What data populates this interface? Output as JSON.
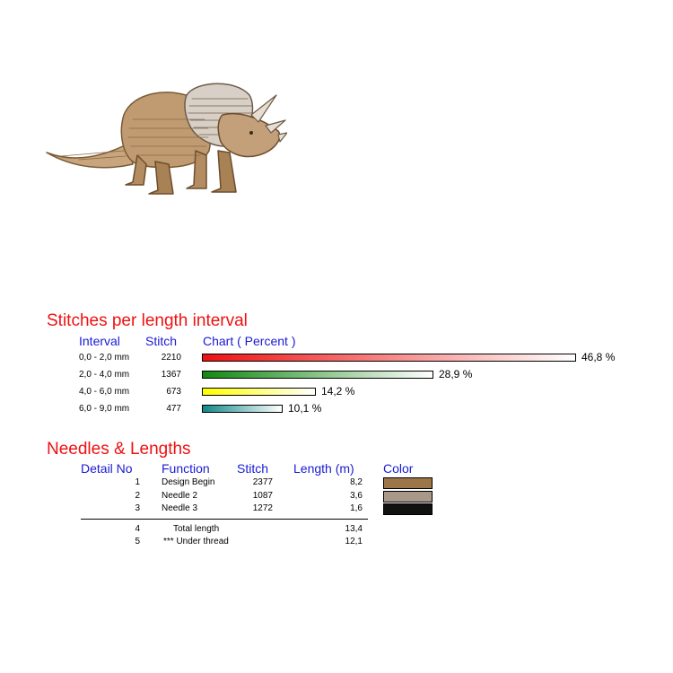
{
  "chart_data": {
    "type": "bar",
    "title": "Stitches per length interval",
    "headers": {
      "interval": "Interval",
      "stitch": "Stitch",
      "chart": "Chart ( Percent )"
    },
    "categories": [
      "0,0 - 2,0 mm",
      "2,0 - 4,0 mm",
      "4,0 - 6,0 mm",
      "6,0 - 9,0 mm"
    ],
    "stitches": [
      "2210",
      "1367",
      "673",
      "477"
    ],
    "values": [
      46.8,
      28.9,
      14.2,
      10.1
    ],
    "value_labels": [
      "46,8 %",
      "28,9 %",
      "14,2 %",
      "10,1 %"
    ],
    "bar_colors": [
      "#ee1111",
      "#118811",
      "#ffff00",
      "#118888"
    ],
    "orientation": "horizontal",
    "grid": false
  },
  "needles": {
    "title": "Needles & Lengths",
    "headers": {
      "detail_no": "Detail No",
      "function": "Function",
      "stitch": "Stitch",
      "length": "Length (m)",
      "color": "Color"
    },
    "rows": [
      {
        "no": "1",
        "function": "Design Begin",
        "stitch": "2377",
        "length": "8,2",
        "color": "#9c7548"
      },
      {
        "no": "2",
        "function": "Needle 2",
        "stitch": "1087",
        "length": "3,6",
        "color": "#a8988a"
      },
      {
        "no": "3",
        "function": "Needle 3",
        "stitch": "1272",
        "length": "1,6",
        "color": "#111111"
      }
    ],
    "totals": [
      {
        "no": "4",
        "function": "Total length",
        "length": "13,4"
      },
      {
        "no": "5",
        "function": "*** Under thread",
        "length": "12,1"
      }
    ]
  }
}
